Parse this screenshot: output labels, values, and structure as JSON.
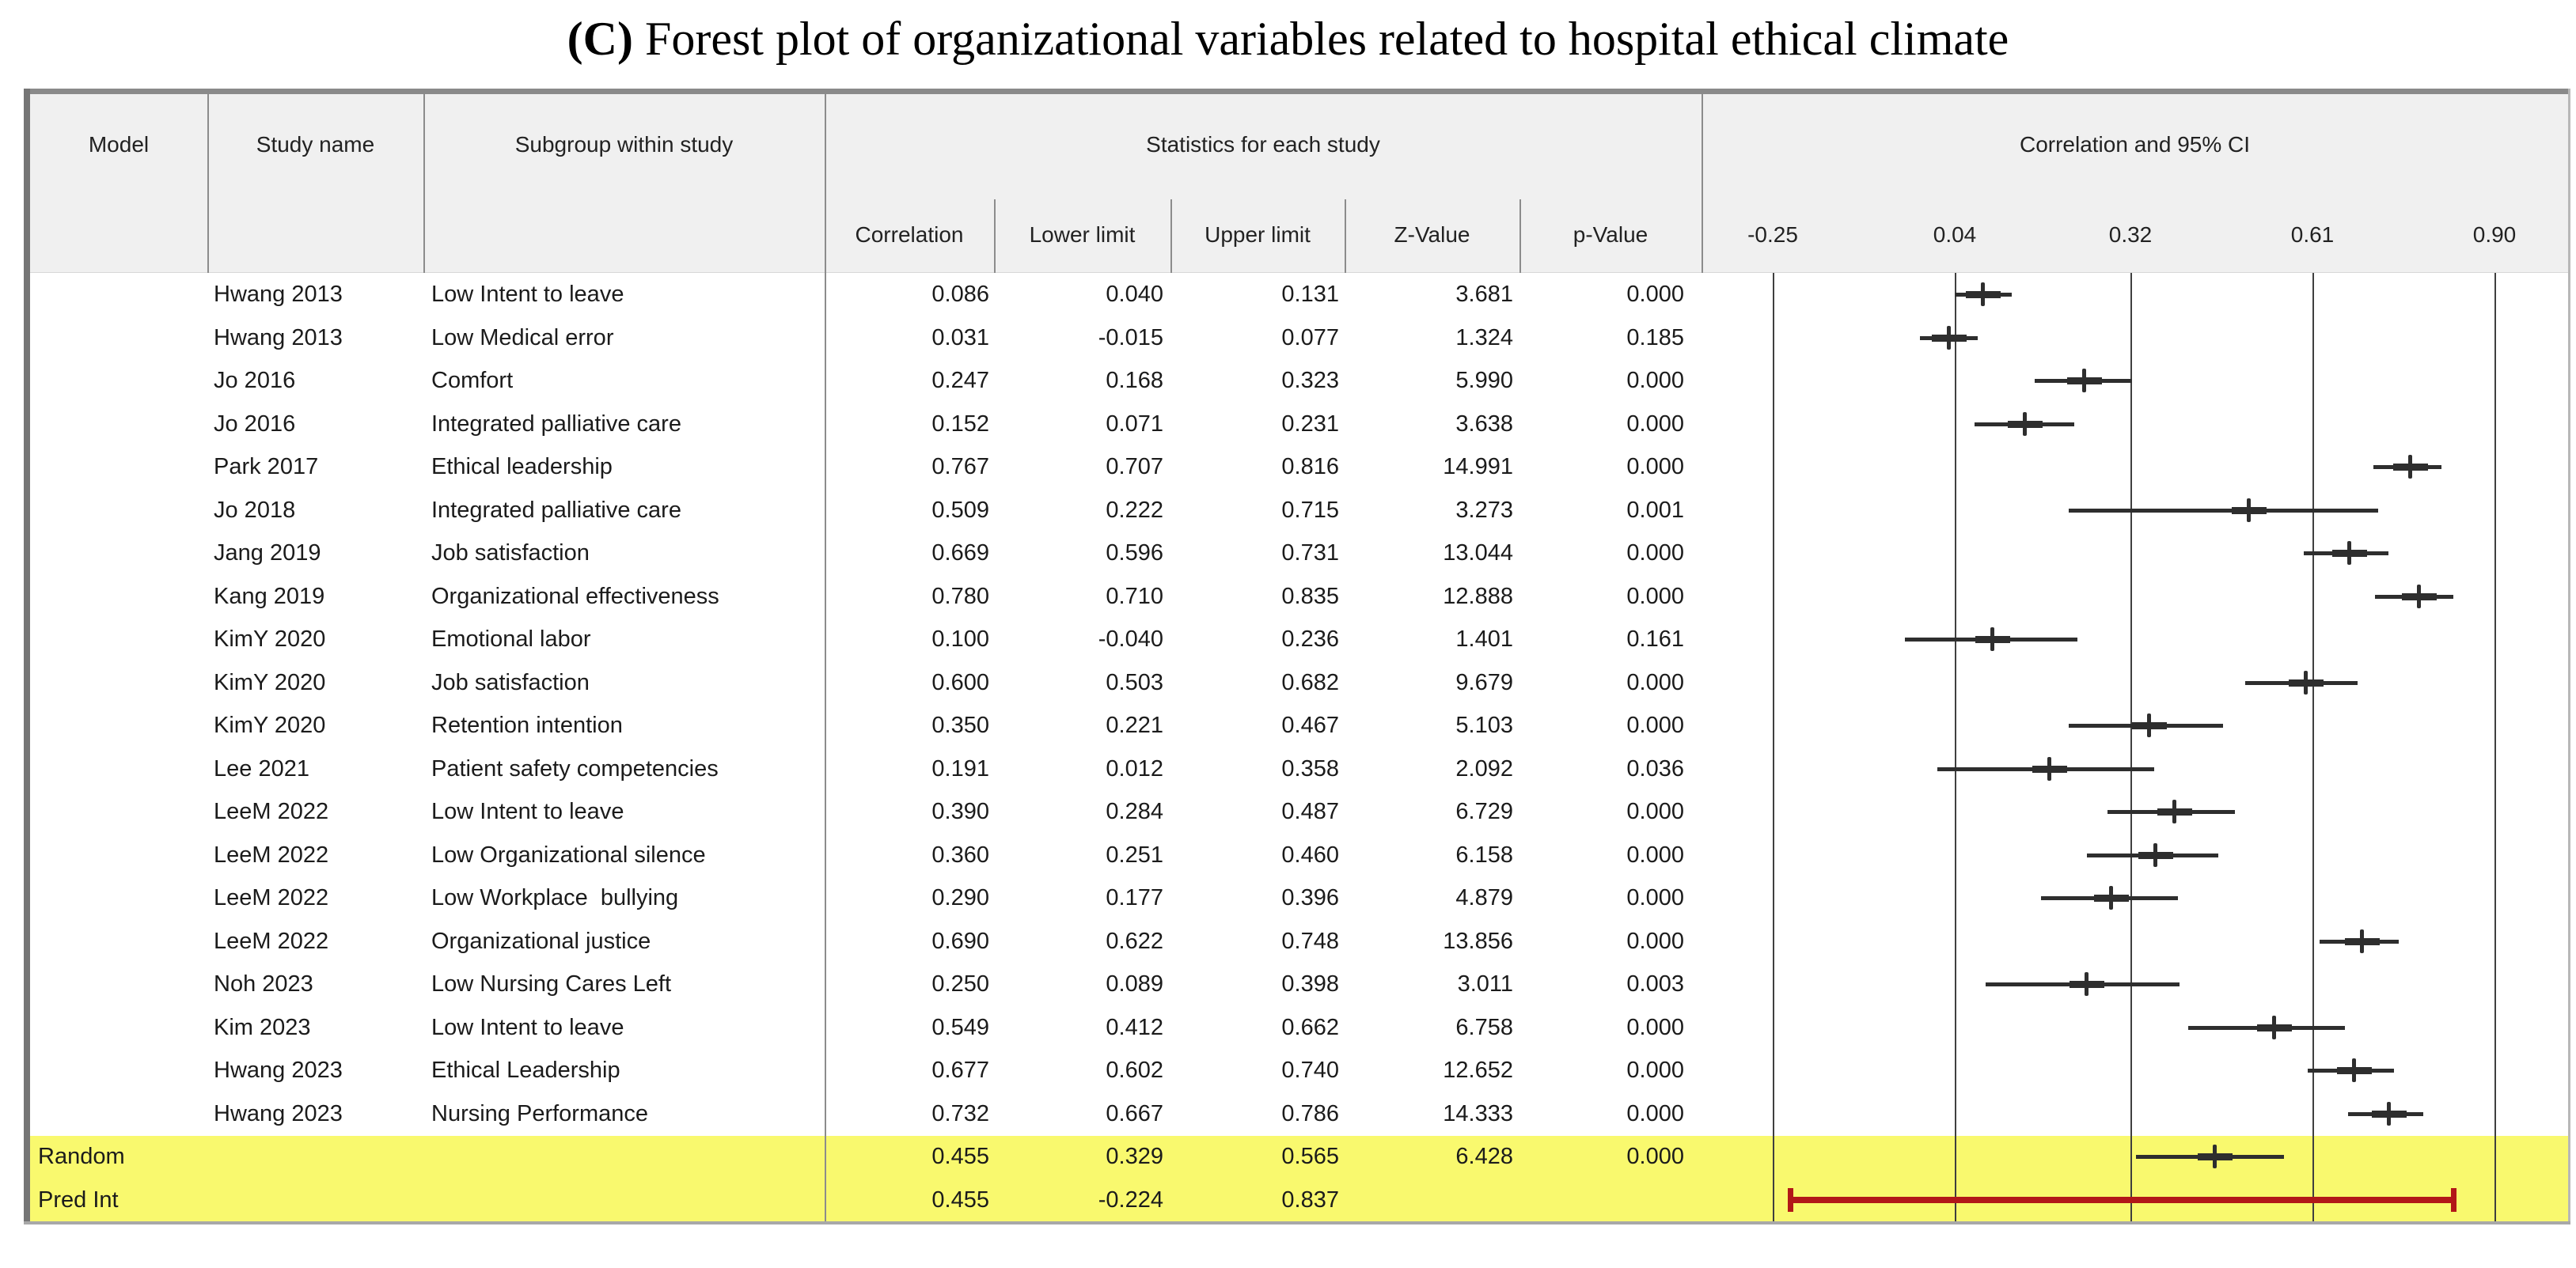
{
  "title": {
    "label": "(C)",
    "text": " Forest plot of organizational variables related to hospital ethical climate"
  },
  "table": {
    "column_headers": {
      "model": "Model",
      "study_name": "Study name",
      "subgroup": "Subgroup within study",
      "stats_group": "Statistics for each study",
      "plot_group": "Correlation and 95% CI"
    },
    "stat_columns": [
      "Correlation",
      "Lower limit",
      "Upper limit",
      "Z-Value",
      "p-Value"
    ]
  },
  "chart_data": {
    "type": "forest",
    "title": "(C) Forest plot of organizational variables related to hospital ethical climate",
    "x_axis": {
      "label": "Correlation and 95% CI",
      "ticks": [
        -0.25,
        0.04,
        0.32,
        0.61,
        0.9
      ],
      "xlim": [
        -0.25,
        0.9
      ],
      "grid": true
    },
    "effect_measure": "Correlation",
    "studies": [
      {
        "study": "Hwang 2013",
        "subgroup": "Low Intent to leave",
        "correlation": 0.086,
        "lower": 0.04,
        "upper": 0.131,
        "z": 3.681,
        "p": 0.0
      },
      {
        "study": "Hwang 2013",
        "subgroup": "Low Medical error",
        "correlation": 0.031,
        "lower": -0.015,
        "upper": 0.077,
        "z": 1.324,
        "p": 0.185
      },
      {
        "study": "Jo 2016",
        "subgroup": "Comfort",
        "correlation": 0.247,
        "lower": 0.168,
        "upper": 0.323,
        "z": 5.99,
        "p": 0.0
      },
      {
        "study": "Jo 2016",
        "subgroup": "Integrated palliative care",
        "correlation": 0.152,
        "lower": 0.071,
        "upper": 0.231,
        "z": 3.638,
        "p": 0.0
      },
      {
        "study": "Park 2017",
        "subgroup": "Ethical leadership",
        "correlation": 0.767,
        "lower": 0.707,
        "upper": 0.816,
        "z": 14.991,
        "p": 0.0
      },
      {
        "study": "Jo 2018",
        "subgroup": "Integrated palliative care",
        "correlation": 0.509,
        "lower": 0.222,
        "upper": 0.715,
        "z": 3.273,
        "p": 0.001
      },
      {
        "study": "Jang 2019",
        "subgroup": "Job satisfaction",
        "correlation": 0.669,
        "lower": 0.596,
        "upper": 0.731,
        "z": 13.044,
        "p": 0.0
      },
      {
        "study": "Kang 2019",
        "subgroup": "Organizational effectiveness",
        "correlation": 0.78,
        "lower": 0.71,
        "upper": 0.835,
        "z": 12.888,
        "p": 0.0
      },
      {
        "study": "KimY 2020",
        "subgroup": "Emotional labor",
        "correlation": 0.1,
        "lower": -0.04,
        "upper": 0.236,
        "z": 1.401,
        "p": 0.161
      },
      {
        "study": "KimY 2020",
        "subgroup": "Job satisfaction",
        "correlation": 0.6,
        "lower": 0.503,
        "upper": 0.682,
        "z": 9.679,
        "p": 0.0
      },
      {
        "study": "KimY 2020",
        "subgroup": "Retention intention",
        "correlation": 0.35,
        "lower": 0.221,
        "upper": 0.467,
        "z": 5.103,
        "p": 0.0
      },
      {
        "study": "Lee 2021",
        "subgroup": "Patient safety competencies",
        "correlation": 0.191,
        "lower": 0.012,
        "upper": 0.358,
        "z": 2.092,
        "p": 0.036
      },
      {
        "study": "LeeM 2022",
        "subgroup": "Low Intent to leave",
        "correlation": 0.39,
        "lower": 0.284,
        "upper": 0.487,
        "z": 6.729,
        "p": 0.0
      },
      {
        "study": "LeeM 2022",
        "subgroup": "Low Organizational silence",
        "correlation": 0.36,
        "lower": 0.251,
        "upper": 0.46,
        "z": 6.158,
        "p": 0.0
      },
      {
        "study": "LeeM 2022",
        "subgroup": "Low Workplace  bullying",
        "correlation": 0.29,
        "lower": 0.177,
        "upper": 0.396,
        "z": 4.879,
        "p": 0.0
      },
      {
        "study": "LeeM 2022",
        "subgroup": "Organizational justice",
        "correlation": 0.69,
        "lower": 0.622,
        "upper": 0.748,
        "z": 13.856,
        "p": 0.0
      },
      {
        "study": "Noh 2023",
        "subgroup": "Low Nursing Cares Left",
        "correlation": 0.25,
        "lower": 0.089,
        "upper": 0.398,
        "z": 3.011,
        "p": 0.003
      },
      {
        "study": "Kim 2023",
        "subgroup": "Low Intent to leave",
        "correlation": 0.549,
        "lower": 0.412,
        "upper": 0.662,
        "z": 6.758,
        "p": 0.0
      },
      {
        "study": "Hwang 2023",
        "subgroup": "Ethical Leadership",
        "correlation": 0.677,
        "lower": 0.602,
        "upper": 0.74,
        "z": 12.652,
        "p": 0.0
      },
      {
        "study": "Hwang 2023",
        "subgroup": "Nursing Performance",
        "correlation": 0.732,
        "lower": 0.667,
        "upper": 0.786,
        "z": 14.333,
        "p": 0.0
      }
    ],
    "summary_rows": [
      {
        "model": "Random",
        "correlation": 0.455,
        "lower": 0.329,
        "upper": 0.565,
        "z": 6.428,
        "p": 0.0,
        "marker": "plus",
        "highlighted": true
      },
      {
        "model": "Pred Int",
        "correlation": 0.455,
        "lower": -0.224,
        "upper": 0.837,
        "z": null,
        "p": null,
        "marker": "interval",
        "highlighted": true
      }
    ]
  },
  "colors": {
    "header_bg": "#f0f0f0",
    "highlight": "#f9f96e",
    "marker": "#2e2e2e",
    "pred_interval": "#b21818",
    "gridline": "#3f3f3f",
    "border": "#8a8a8a"
  }
}
